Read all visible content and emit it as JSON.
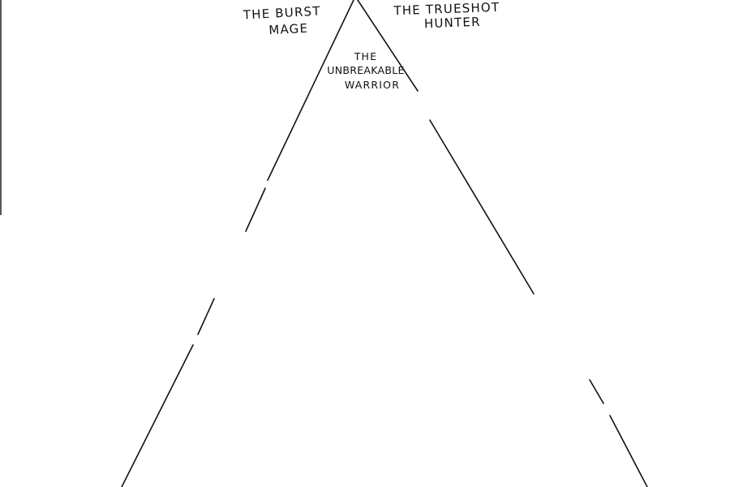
{
  "labels": {
    "burst_mage": {
      "line1": "THE BURST",
      "line2": "MAGE"
    },
    "trueshot_hunter": {
      "line1": "THE TRUESHOT",
      "line2": "HUNTER"
    },
    "unbreakable_warrior": {
      "line1": "THE",
      "line2": "UNBREAKABLE",
      "line3": "WARRIOR"
    }
  },
  "colors": {
    "ink": "#111111",
    "background": "#ffffff"
  }
}
